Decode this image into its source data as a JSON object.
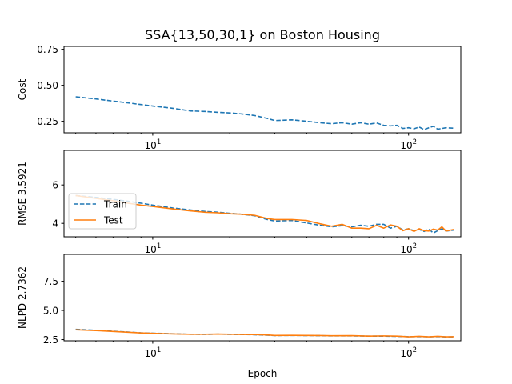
{
  "chart_data": [
    {
      "type": "line",
      "title": "SSA{13,50,30,1} on Boston Housing",
      "ylabel": "Cost",
      "xlabel": "",
      "xscale": "log",
      "xlim": [
        4.5,
        160
      ],
      "ylim": [
        0.17,
        0.77
      ],
      "x_major_ticks": [
        {
          "value": 10,
          "base": "10",
          "exp": "1"
        },
        {
          "value": 100,
          "base": "10",
          "exp": "2"
        }
      ],
      "yticks": [
        0.25,
        0.5,
        0.75
      ],
      "ytick_labels": [
        "0.25",
        "0.50",
        "0.75"
      ],
      "legend": null,
      "series": [
        {
          "color": "#1f77b4",
          "style": "dashed",
          "points": [
            [
              5,
              0.42
            ],
            [
              6,
              0.405
            ],
            [
              7,
              0.39
            ],
            [
              8,
              0.378
            ],
            [
              9,
              0.366
            ],
            [
              10,
              0.356
            ],
            [
              12,
              0.34
            ],
            [
              14,
              0.322
            ],
            [
              16,
              0.318
            ],
            [
              18,
              0.312
            ],
            [
              20,
              0.308
            ],
            [
              22,
              0.302
            ],
            [
              25,
              0.29
            ],
            [
              28,
              0.27
            ],
            [
              30,
              0.255
            ],
            [
              35,
              0.26
            ],
            [
              40,
              0.25
            ],
            [
              45,
              0.24
            ],
            [
              50,
              0.233
            ],
            [
              55,
              0.24
            ],
            [
              60,
              0.23
            ],
            [
              65,
              0.24
            ],
            [
              70,
              0.23
            ],
            [
              75,
              0.238
            ],
            [
              80,
              0.222
            ],
            [
              85,
              0.218
            ],
            [
              90,
              0.222
            ],
            [
              95,
              0.2
            ],
            [
              100,
              0.205
            ],
            [
              105,
              0.198
            ],
            [
              110,
              0.21
            ],
            [
              115,
              0.192
            ],
            [
              120,
              0.205
            ],
            [
              125,
              0.215
            ],
            [
              130,
              0.195
            ],
            [
              135,
              0.2
            ],
            [
              140,
              0.205
            ],
            [
              150,
              0.202
            ]
          ]
        }
      ]
    },
    {
      "type": "line",
      "title": "",
      "ylabel": "RMSE 3.5921",
      "xlabel": "",
      "xscale": "log",
      "xlim": [
        4.5,
        160
      ],
      "ylim": [
        3.3,
        7.8
      ],
      "x_major_ticks": [
        {
          "value": 10,
          "base": "10",
          "exp": "1"
        },
        {
          "value": 100,
          "base": "10",
          "exp": "2"
        }
      ],
      "yticks": [
        4,
        6
      ],
      "ytick_labels": [
        "4",
        "6"
      ],
      "legend": {
        "placement": "center-left",
        "entries": [
          {
            "label": "Train",
            "color": "#1f77b4",
            "style": "dashed"
          },
          {
            "label": "Test",
            "color": "#ff7f0e",
            "style": "solid"
          }
        ]
      },
      "series": [
        {
          "name": "Train",
          "color": "#1f77b4",
          "style": "dashed",
          "points": [
            [
              5,
              5.45
            ],
            [
              6,
              5.35
            ],
            [
              7,
              5.25
            ],
            [
              8,
              5.15
            ],
            [
              9,
              5.05
            ],
            [
              10,
              4.95
            ],
            [
              12,
              4.8
            ],
            [
              14,
              4.7
            ],
            [
              16,
              4.62
            ],
            [
              18,
              4.58
            ],
            [
              20,
              4.52
            ],
            [
              22,
              4.48
            ],
            [
              25,
              4.4
            ],
            [
              28,
              4.2
            ],
            [
              30,
              4.12
            ],
            [
              35,
              4.15
            ],
            [
              40,
              4.02
            ],
            [
              45,
              3.9
            ],
            [
              50,
              3.82
            ],
            [
              55,
              3.88
            ],
            [
              60,
              3.82
            ],
            [
              65,
              3.9
            ],
            [
              70,
              3.85
            ],
            [
              75,
              3.95
            ],
            [
              80,
              3.95
            ],
            [
              85,
              3.75
            ],
            [
              90,
              3.85
            ],
            [
              95,
              3.65
            ],
            [
              100,
              3.72
            ],
            [
              105,
              3.62
            ],
            [
              110,
              3.68
            ],
            [
              115,
              3.58
            ],
            [
              120,
              3.7
            ],
            [
              125,
              3.5
            ],
            [
              130,
              3.62
            ],
            [
              135,
              3.72
            ],
            [
              140,
              3.6
            ],
            [
              150,
              3.65
            ]
          ]
        },
        {
          "name": "Test",
          "color": "#ff7f0e",
          "style": "solid",
          "points": [
            [
              5,
              5.45
            ],
            [
              6,
              5.3
            ],
            [
              7,
              5.18
            ],
            [
              8,
              5.05
            ],
            [
              9,
              4.95
            ],
            [
              10,
              4.88
            ],
            [
              12,
              4.75
            ],
            [
              14,
              4.65
            ],
            [
              16,
              4.58
            ],
            [
              18,
              4.55
            ],
            [
              20,
              4.5
            ],
            [
              22,
              4.48
            ],
            [
              25,
              4.42
            ],
            [
              28,
              4.25
            ],
            [
              30,
              4.2
            ],
            [
              35,
              4.2
            ],
            [
              40,
              4.15
            ],
            [
              45,
              3.98
            ],
            [
              50,
              3.85
            ],
            [
              55,
              3.95
            ],
            [
              60,
              3.75
            ],
            [
              65,
              3.75
            ],
            [
              70,
              3.72
            ],
            [
              75,
              3.9
            ],
            [
              80,
              3.75
            ],
            [
              85,
              3.92
            ],
            [
              90,
              3.85
            ],
            [
              95,
              3.62
            ],
            [
              100,
              3.72
            ],
            [
              105,
              3.58
            ],
            [
              110,
              3.72
            ],
            [
              115,
              3.62
            ],
            [
              120,
              3.6
            ],
            [
              125,
              3.7
            ],
            [
              130,
              3.65
            ],
            [
              135,
              3.82
            ],
            [
              140,
              3.6
            ],
            [
              150,
              3.68
            ]
          ]
        }
      ]
    },
    {
      "type": "line",
      "title": "",
      "ylabel": "NLPD 2.7362",
      "xlabel": "Epoch",
      "xscale": "log",
      "xlim": [
        4.5,
        160
      ],
      "ylim": [
        2.4,
        9.8
      ],
      "x_major_ticks": [
        {
          "value": 10,
          "base": "10",
          "exp": "1"
        },
        {
          "value": 100,
          "base": "10",
          "exp": "2"
        }
      ],
      "yticks": [
        2.5,
        5.0,
        7.5
      ],
      "ytick_labels": [
        "2.5",
        "5.0",
        "7.5"
      ],
      "legend": null,
      "series": [
        {
          "name": "Train",
          "color": "#1f77b4",
          "style": "dashed",
          "points": [
            [
              5,
              3.38
            ],
            [
              6,
              3.3
            ],
            [
              7,
              3.22
            ],
            [
              8,
              3.15
            ],
            [
              9,
              3.08
            ],
            [
              10,
              3.05
            ],
            [
              12,
              3.0
            ],
            [
              14,
              2.96
            ],
            [
              16,
              2.95
            ],
            [
              18,
              2.97
            ],
            [
              20,
              2.95
            ],
            [
              22,
              2.94
            ],
            [
              25,
              2.92
            ],
            [
              28,
              2.88
            ],
            [
              30,
              2.85
            ],
            [
              35,
              2.86
            ],
            [
              40,
              2.85
            ],
            [
              45,
              2.84
            ],
            [
              50,
              2.82
            ],
            [
              60,
              2.82
            ],
            [
              70,
              2.8
            ],
            [
              80,
              2.8
            ],
            [
              90,
              2.78
            ],
            [
              100,
              2.75
            ],
            [
              110,
              2.76
            ],
            [
              120,
              2.74
            ],
            [
              130,
              2.76
            ],
            [
              140,
              2.73
            ],
            [
              150,
              2.74
            ]
          ]
        },
        {
          "name": "Test",
          "color": "#ff7f0e",
          "style": "solid",
          "points": [
            [
              5,
              3.35
            ],
            [
              6,
              3.28
            ],
            [
              7,
              3.2
            ],
            [
              8,
              3.13
            ],
            [
              9,
              3.07
            ],
            [
              10,
              3.04
            ],
            [
              12,
              2.99
            ],
            [
              14,
              2.96
            ],
            [
              16,
              2.96
            ],
            [
              18,
              2.98
            ],
            [
              20,
              2.96
            ],
            [
              22,
              2.94
            ],
            [
              25,
              2.93
            ],
            [
              28,
              2.9
            ],
            [
              30,
              2.86
            ],
            [
              35,
              2.87
            ],
            [
              40,
              2.86
            ],
            [
              45,
              2.85
            ],
            [
              50,
              2.83
            ],
            [
              60,
              2.84
            ],
            [
              70,
              2.8
            ],
            [
              80,
              2.82
            ],
            [
              90,
              2.8
            ],
            [
              100,
              2.74
            ],
            [
              110,
              2.78
            ],
            [
              120,
              2.74
            ],
            [
              130,
              2.78
            ],
            [
              140,
              2.74
            ],
            [
              150,
              2.75
            ]
          ]
        }
      ]
    }
  ]
}
